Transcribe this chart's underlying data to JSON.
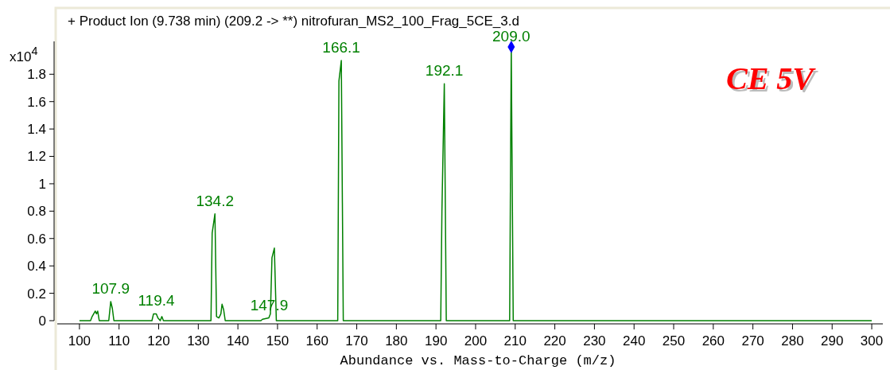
{
  "chart_data": {
    "type": "line",
    "title": "+ Product Ion (9.738 min) (209.2 -> **) nitrofuran_MS2_100_Frag_5CE_3.d",
    "xlabel": "Abundance vs. Mass-to-Charge (m/z)",
    "ylabel": "x10$^{4}$",
    "xlim": [
      94.4,
      302.8
    ],
    "xticks": [
      100,
      110,
      120,
      130,
      140,
      150,
      160,
      170,
      180,
      190,
      200,
      210,
      220,
      230,
      240,
      250,
      260,
      270,
      280,
      290,
      300
    ],
    "ylim": [
      0,
      2.04
    ],
    "yticks": [
      0,
      0.2,
      0.4,
      0.6,
      0.8,
      1,
      1.2,
      1.4,
      1.6,
      1.8
    ],
    "series": [
      {
        "color": "#008000",
        "x": [
          100,
          102.8,
          103.2,
          103.6,
          104,
          104.3,
          104.6,
          105,
          107.4,
          107.9,
          108.3,
          108.7,
          118.3,
          118.7,
          119.4,
          119.8,
          120.4,
          120.8,
          121.2,
          133.2,
          133.5,
          133.8,
          134.2,
          134.6,
          135.2,
          135.7,
          136,
          136.4,
          136.8,
          145.8,
          146.2,
          147.8,
          148.2,
          148.6,
          149.2,
          149.7,
          165.2,
          165.5,
          166.1,
          166.6,
          191.2,
          191.5,
          192.1,
          192.6,
          208.6,
          208.8,
          209,
          209.5,
          300
        ],
        "values": [
          0,
          0,
          0.03,
          0.05,
          0.07,
          0.05,
          0.07,
          0,
          0,
          0.14,
          0.09,
          0,
          0,
          0.05,
          0.05,
          0.02,
          0,
          0.03,
          0,
          0,
          0.64,
          0.7,
          0.78,
          0.03,
          0.02,
          0.05,
          0.12,
          0.08,
          0,
          0,
          0.01,
          0.02,
          0.05,
          0.46,
          0.53,
          0,
          0,
          1.75,
          1.9,
          0,
          0,
          0.8,
          1.73,
          0,
          0,
          1.02,
          1.98,
          0,
          0
        ]
      },
      {
        "type": "scatter",
        "color": "#0000ff",
        "marker": "diamond",
        "x": [
          209.0
        ],
        "values": [
          2.0
        ]
      }
    ],
    "annotations": [
      {
        "text": "107.9",
        "x": 107.9,
        "y": 0.14
      },
      {
        "text": "119.4",
        "x": 119.4,
        "y": 0.05
      },
      {
        "text": "134.2",
        "x": 134.2,
        "y": 0.78
      },
      {
        "text": "147.9",
        "x": 147.9,
        "y": 0.02
      },
      {
        "text": "166.1",
        "x": 166.1,
        "y": 1.9
      },
      {
        "text": "192.1",
        "x": 192.1,
        "y": 1.73
      },
      {
        "text": "209.0",
        "x": 209.0,
        "y": 1.98
      },
      "CE 5V"
    ],
    "grid": false
  }
}
